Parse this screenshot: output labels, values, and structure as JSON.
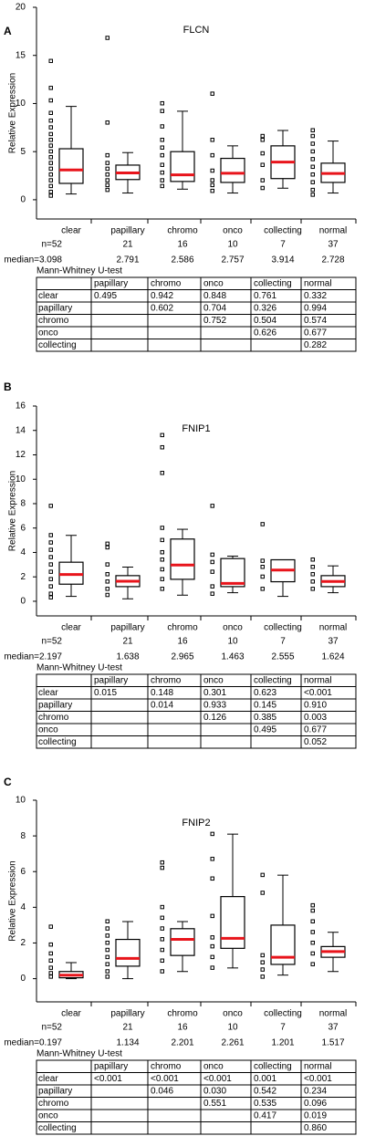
{
  "chart_data": [
    {
      "panel": "A",
      "type": "box",
      "title": "FLCN",
      "y_label": "Relative Expression",
      "ylim": [
        -2,
        20
      ],
      "yticks": [
        0,
        5,
        10,
        15,
        20
      ],
      "categories": [
        "clear",
        "papillary",
        "chromo",
        "onco",
        "collecting",
        "normal"
      ],
      "n_labels": [
        "n=52",
        "21",
        "16",
        "10",
        "7",
        "37"
      ],
      "median_labels": [
        "median=3.098",
        "2.791",
        "2.586",
        "2.757",
        "3.914",
        "2.728"
      ],
      "whisker_low": [
        0.6,
        0.7,
        1.1,
        0.7,
        1.2,
        0.7
      ],
      "q1": [
        1.7,
        2.1,
        1.9,
        1.8,
        2.2,
        1.8
      ],
      "median": [
        3.098,
        2.791,
        2.586,
        2.757,
        3.914,
        2.728
      ],
      "q3": [
        5.3,
        3.6,
        5.0,
        4.3,
        5.6,
        3.8
      ],
      "whisker_high": [
        9.7,
        4.9,
        9.2,
        5.6,
        7.2,
        6.1
      ],
      "points": [
        [
          14.4,
          11.6,
          10.3,
          9.0,
          8.2,
          7.5,
          6.8,
          6.2,
          5.6,
          5.0,
          4.4,
          3.8,
          3.2,
          2.6,
          2.0,
          1.4,
          0.8,
          0.4
        ],
        [
          16.8,
          8.0,
          4.6,
          3.8,
          3.2,
          2.6,
          2.0,
          1.5,
          1.0
        ],
        [
          10.0,
          9.2,
          7.6,
          6.2,
          5.4,
          4.6,
          3.6,
          2.8,
          2.0,
          1.4
        ],
        [
          11.0,
          6.2,
          4.6,
          3.0,
          2.0,
          1.5,
          0.9
        ],
        [
          6.6,
          6.2,
          4.8,
          3.6,
          2.0,
          1.2
        ],
        [
          7.2,
          6.6,
          5.8,
          5.0,
          4.2,
          3.4,
          2.6,
          1.8,
          1.0,
          0.5
        ]
      ],
      "box_color": "#000000",
      "median_color": "#e8141b",
      "table": {
        "title": "Mann-Whitney U-test",
        "columns": [
          "papillary",
          "chromo",
          "onco",
          "collecting",
          "normal"
        ],
        "rows": [
          {
            "label": "clear",
            "cells": [
              "0.495",
              "0.942",
              "0.848",
              "0.761",
              "0.332"
            ]
          },
          {
            "label": "papillary",
            "cells": [
              null,
              "0.602",
              "0.704",
              "0.326",
              "0.994"
            ]
          },
          {
            "label": "chromo",
            "cells": [
              null,
              null,
              "0.752",
              "0.504",
              "0.574"
            ]
          },
          {
            "label": "onco",
            "cells": [
              null,
              null,
              null,
              "0.626",
              "0.677"
            ]
          },
          {
            "label": "collecting",
            "cells": [
              null,
              null,
              null,
              null,
              "0.282"
            ]
          }
        ],
        "highlight": [],
        "highlight_color": "#e8141b"
      }
    },
    {
      "panel": "B",
      "type": "box",
      "title": "FNIP1",
      "y_label": "Relative Expression",
      "ylim": [
        -1.2,
        16
      ],
      "yticks": [
        0,
        2,
        4,
        6,
        8,
        10,
        12,
        14,
        16
      ],
      "categories": [
        "clear",
        "papillary",
        "chromo",
        "onco",
        "collecting",
        "normal"
      ],
      "n_labels": [
        "n=52",
        "21",
        "16",
        "10",
        "7",
        "37"
      ],
      "median_labels": [
        "median=2.197",
        "1.638",
        "2.965",
        "1.463",
        "2.555",
        "1.624"
      ],
      "whisker_low": [
        0.4,
        0.2,
        0.5,
        0.7,
        0.4,
        0.7
      ],
      "q1": [
        1.4,
        1.2,
        1.8,
        1.2,
        1.6,
        1.2
      ],
      "median": [
        2.197,
        1.638,
        2.965,
        1.463,
        2.555,
        1.624
      ],
      "q3": [
        3.2,
        2.1,
        5.1,
        3.5,
        3.4,
        2.1
      ],
      "whisker_high": [
        5.4,
        2.8,
        5.9,
        3.7,
        3.4,
        2.9
      ],
      "points": [
        [
          7.8,
          5.4,
          4.8,
          4.2,
          3.6,
          3.0,
          2.4,
          1.8,
          1.2,
          0.6,
          0.3
        ],
        [
          4.7,
          4.4,
          3.0,
          2.2,
          1.6,
          1.0,
          0.5
        ],
        [
          13.6,
          12.6,
          10.5,
          6.0,
          5.0,
          4.0,
          3.4,
          2.6,
          1.8,
          1.0
        ],
        [
          7.8,
          3.8,
          3.2,
          2.4,
          1.2,
          0.6
        ],
        [
          6.3,
          3.3,
          2.8,
          2.0,
          1.0
        ],
        [
          3.4,
          2.8,
          2.2,
          1.6,
          1.0
        ]
      ],
      "box_color": "#000000",
      "median_color": "#e8141b",
      "table": {
        "title": "Mann-Whitney U-test",
        "columns": [
          "papillary",
          "chromo",
          "onco",
          "collecting",
          "normal"
        ],
        "rows": [
          {
            "label": "clear",
            "cells": [
              "0.015",
              "0.148",
              "0.301",
              "0.623",
              "<0.001"
            ]
          },
          {
            "label": "papillary",
            "cells": [
              null,
              "0.014",
              "0.933",
              "0.145",
              "0.910"
            ]
          },
          {
            "label": "chromo",
            "cells": [
              null,
              null,
              "0.126",
              "0.385",
              "0.003"
            ]
          },
          {
            "label": "onco",
            "cells": [
              null,
              null,
              null,
              "0.495",
              "0.677"
            ]
          },
          {
            "label": "collecting",
            "cells": [
              null,
              null,
              null,
              null,
              "0.052"
            ]
          }
        ],
        "highlight": [
          [
            0,
            0
          ],
          [
            0,
            4
          ],
          [
            1,
            1
          ],
          [
            2,
            4
          ]
        ],
        "highlight_color": "#e8141b"
      }
    },
    {
      "panel": "C",
      "type": "box",
      "title": "FNIP2",
      "y_label": "Relative Expression",
      "ylim": [
        -1.3,
        10
      ],
      "yticks": [
        0,
        2,
        4,
        6,
        8,
        10
      ],
      "categories": [
        "clear",
        "papillary",
        "chromo",
        "onco",
        "collecting",
        "normal"
      ],
      "n_labels": [
        "n=52",
        "21",
        "16",
        "10",
        "7",
        "37"
      ],
      "median_labels": [
        "median=0.197",
        "1.134",
        "2.201",
        "2.261",
        "1.201",
        "1.517"
      ],
      "whisker_low": [
        0,
        0,
        0.4,
        0.6,
        0.2,
        0.4
      ],
      "q1": [
        0.05,
        0.7,
        1.3,
        1.7,
        0.8,
        1.2
      ],
      "median": [
        0.197,
        1.134,
        2.201,
        2.261,
        1.201,
        1.517
      ],
      "q3": [
        0.4,
        2.2,
        2.8,
        4.6,
        3.0,
        1.8
      ],
      "whisker_high": [
        0.9,
        3.2,
        3.2,
        8.1,
        5.8,
        2.6
      ],
      "points": [
        [
          2.9,
          1.9,
          1.4,
          1.0,
          0.6,
          0.3,
          0.1
        ],
        [
          3.2,
          2.8,
          2.4,
          2.0,
          1.6,
          1.2,
          0.8,
          0.4,
          0.1
        ],
        [
          6.5,
          6.2,
          4.0,
          3.4,
          2.8,
          2.2,
          1.6,
          1.0,
          0.4
        ],
        [
          8.1,
          6.7,
          5.6,
          3.5,
          2.3,
          1.8,
          1.2,
          0.6
        ],
        [
          5.8,
          4.8,
          1.3,
          0.9,
          0.5,
          0.1
        ],
        [
          4.1,
          3.8,
          3.2,
          2.6,
          2.0,
          1.4,
          0.8
        ]
      ],
      "box_color": "#000000",
      "median_color": "#e8141b",
      "table": {
        "title": "Mann-Whitney U-test",
        "columns": [
          "papillary",
          "chromo",
          "onco",
          "collecting",
          "normal"
        ],
        "rows": [
          {
            "label": "clear",
            "cells": [
              "<0.001",
              "<0.001",
              "<0.001",
              "0.001",
              "<0.001"
            ]
          },
          {
            "label": "papillary",
            "cells": [
              null,
              "0.046",
              "0.030",
              "0.542",
              "0.234"
            ]
          },
          {
            "label": "chromo",
            "cells": [
              null,
              null,
              "0.551",
              "0.535",
              "0.096"
            ]
          },
          {
            "label": "onco",
            "cells": [
              null,
              null,
              null,
              "0.417",
              "0.019"
            ]
          },
          {
            "label": "collecting",
            "cells": [
              null,
              null,
              null,
              null,
              "0.860"
            ]
          }
        ],
        "highlight": [
          [
            0,
            0
          ],
          [
            0,
            1
          ],
          [
            0,
            2
          ],
          [
            0,
            3
          ],
          [
            0,
            4
          ],
          [
            1,
            1
          ],
          [
            1,
            2
          ],
          [
            3,
            4
          ]
        ],
        "highlight_color": "#e8141b"
      }
    }
  ]
}
